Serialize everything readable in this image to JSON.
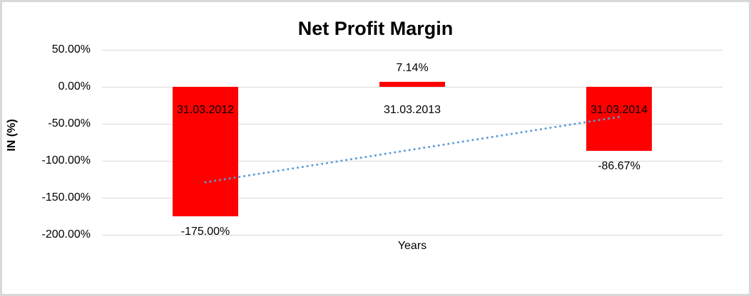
{
  "chart_data": {
    "type": "bar",
    "title": "Net Profit Margin",
    "xlabel": "Years",
    "ylabel": "IN (%)",
    "categories": [
      "31.03.2012",
      "31.03.2013",
      "31.03.2014"
    ],
    "values": [
      -175.0,
      7.14,
      -86.67
    ],
    "data_labels": [
      "-175.00%",
      "7.14%",
      "-86.67%"
    ],
    "ylim": [
      -200,
      50
    ],
    "yticks": [
      50,
      0,
      -50,
      -100,
      -150,
      -200
    ],
    "ytick_labels": [
      "50.00%",
      "0.00%",
      "-50.00%",
      "-100.00%",
      "-150.00%",
      "-200.00%"
    ],
    "grid": true,
    "legend": false,
    "bar_color": "#ff0000",
    "gridline_color": "#d9d9d9",
    "frame_border_color": "#d9d9d9",
    "trendline": {
      "type": "linear",
      "style": "dotted",
      "color": "#5b9bd5"
    }
  }
}
